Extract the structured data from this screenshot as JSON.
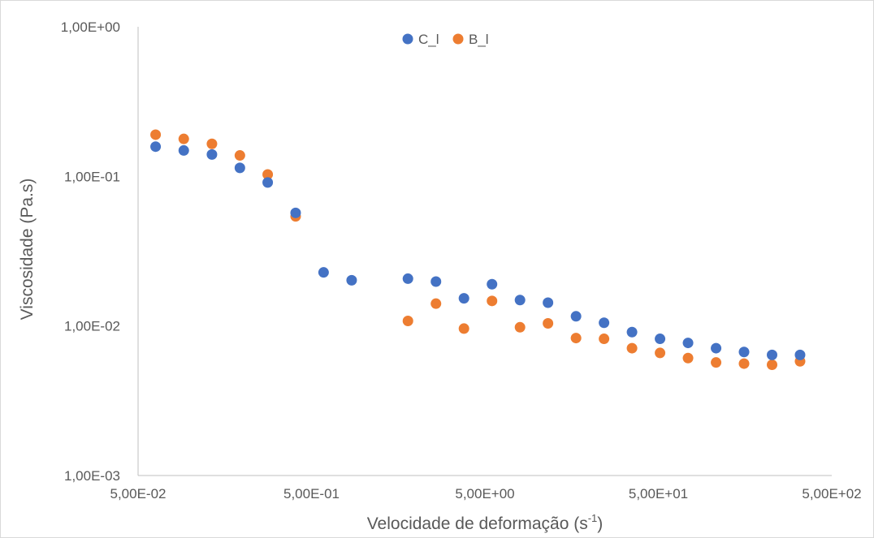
{
  "chart_data": {
    "type": "scatter",
    "xlabel": "Velocidade de deformação (s",
    "xlabel_sup": "-1",
    "xlabel_end": ")",
    "ylabel": "Viscosidade (Pa.s)",
    "x_scale": "log",
    "y_scale": "log",
    "xlim": [
      0.05,
      500
    ],
    "ylim": [
      0.001,
      1
    ],
    "x_ticks": [
      {
        "value": 0.05,
        "label": "5,00E-02"
      },
      {
        "value": 0.5,
        "label": "5,00E-01"
      },
      {
        "value": 5,
        "label": "5,00E+00"
      },
      {
        "value": 50,
        "label": "5,00E+01"
      },
      {
        "value": 500,
        "label": "5,00E+02"
      }
    ],
    "y_ticks": [
      {
        "value": 1,
        "label": "1,00E+00"
      },
      {
        "value": 0.1,
        "label": "1,00E-01"
      },
      {
        "value": 0.01,
        "label": "1,00E-02"
      },
      {
        "value": 0.001,
        "label": "1,00E-03"
      }
    ],
    "grid": false,
    "legend_position": "top-center",
    "series": [
      {
        "name": "C_l",
        "color": "#4472C4",
        "points": [
          {
            "x": 0.0631,
            "y": 0.158
          },
          {
            "x": 0.0917,
            "y": 0.149
          },
          {
            "x": 0.1333,
            "y": 0.14
          },
          {
            "x": 0.1932,
            "y": 0.114
          },
          {
            "x": 0.2795,
            "y": 0.091
          },
          {
            "x": 0.405,
            "y": 0.057
          },
          {
            "x": 0.587,
            "y": 0.0228
          },
          {
            "x": 0.852,
            "y": 0.0202
          },
          {
            "x": 1.799,
            "y": 0.0207
          },
          {
            "x": 2.61,
            "y": 0.0198
          },
          {
            "x": 3.785,
            "y": 0.0153
          },
          {
            "x": 5.493,
            "y": 0.019
          },
          {
            "x": 7.966,
            "y": 0.0149
          },
          {
            "x": 11.55,
            "y": 0.0143
          },
          {
            "x": 16.76,
            "y": 0.0116
          },
          {
            "x": 24.31,
            "y": 0.0105
          },
          {
            "x": 35.25,
            "y": 0.0091
          },
          {
            "x": 51.13,
            "y": 0.0082
          },
          {
            "x": 74.16,
            "y": 0.0077
          },
          {
            "x": 107.6,
            "y": 0.0071
          },
          {
            "x": 156.0,
            "y": 0.0067
          },
          {
            "x": 226.3,
            "y": 0.0064
          },
          {
            "x": 328.2,
            "y": 0.0064
          }
        ]
      },
      {
        "name": "B_l",
        "color": "#ED7D31",
        "points": [
          {
            "x": 0.0631,
            "y": 0.19
          },
          {
            "x": 0.0917,
            "y": 0.178
          },
          {
            "x": 0.1333,
            "y": 0.165
          },
          {
            "x": 0.1932,
            "y": 0.138
          },
          {
            "x": 0.2795,
            "y": 0.103
          },
          {
            "x": 0.405,
            "y": 0.054
          },
          {
            "x": 1.799,
            "y": 0.0108
          },
          {
            "x": 2.61,
            "y": 0.0141
          },
          {
            "x": 3.785,
            "y": 0.0096
          },
          {
            "x": 5.493,
            "y": 0.0147
          },
          {
            "x": 7.966,
            "y": 0.0098
          },
          {
            "x": 11.55,
            "y": 0.0104
          },
          {
            "x": 16.76,
            "y": 0.0083
          },
          {
            "x": 24.31,
            "y": 0.0082
          },
          {
            "x": 35.25,
            "y": 0.0071
          },
          {
            "x": 51.13,
            "y": 0.0066
          },
          {
            "x": 74.16,
            "y": 0.0061
          },
          {
            "x": 107.6,
            "y": 0.0057
          },
          {
            "x": 156.0,
            "y": 0.0056
          },
          {
            "x": 226.3,
            "y": 0.0055
          },
          {
            "x": 328.2,
            "y": 0.0058
          }
        ]
      }
    ]
  }
}
